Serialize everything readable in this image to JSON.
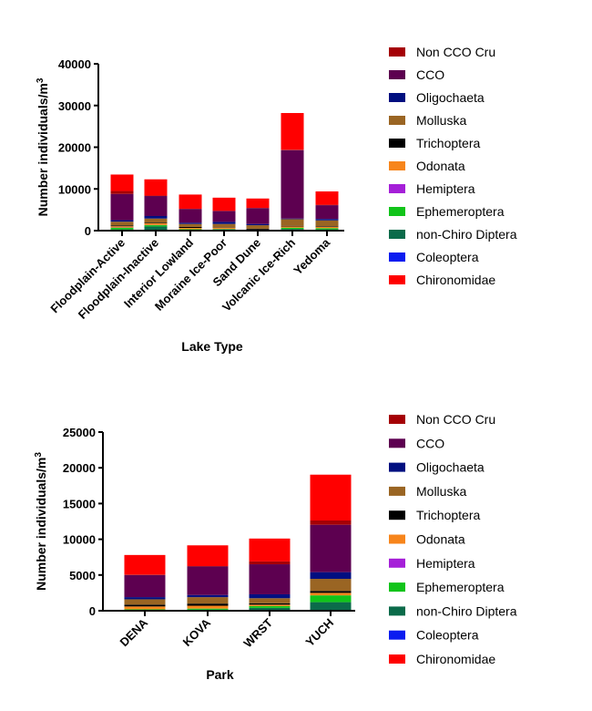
{
  "chart_data": [
    {
      "type": "bar",
      "stacked": true,
      "xlabel": "Lake Type",
      "ylabel": "Number individuals/m³",
      "ylim": [
        0,
        40000
      ],
      "yticks": [
        "0",
        "10000",
        "20000",
        "30000",
        "40000"
      ],
      "categories": [
        "Floodplain-Active",
        "Floodplain-Inactive",
        "Interior Lowland",
        "Moraine Ice-Poor",
        "Sand Dune",
        "Volcanic Ice-Rich",
        "Yedoma"
      ],
      "legend": "right",
      "series": [
        {
          "name": "non-Chiro Diptera",
          "color": "#0b6b4a",
          "values": [
            300,
            1000,
            200,
            300,
            150,
            400,
            300
          ]
        },
        {
          "name": "Ephemeroptera",
          "color": "#11c41a",
          "values": [
            400,
            300,
            150,
            100,
            0,
            300,
            300
          ]
        },
        {
          "name": "Hemiptera",
          "color": "#a51fd8",
          "values": [
            50,
            50,
            0,
            0,
            0,
            0,
            0
          ]
        },
        {
          "name": "Odonata",
          "color": "#f7851b",
          "values": [
            300,
            400,
            300,
            300,
            100,
            300,
            300
          ]
        },
        {
          "name": "Trichoptera",
          "color": "#000000",
          "values": [
            200,
            150,
            250,
            100,
            200,
            150,
            150
          ]
        },
        {
          "name": "Molluska",
          "color": "#9a6523",
          "values": [
            900,
            1000,
            700,
            800,
            850,
            1600,
            1400
          ]
        },
        {
          "name": "Coleoptera",
          "color": "#0a1cf0",
          "values": [
            0,
            0,
            0,
            0,
            0,
            0,
            0
          ]
        },
        {
          "name": "Oligochaeta",
          "color": "#000f80",
          "values": [
            350,
            600,
            300,
            500,
            300,
            150,
            350
          ]
        },
        {
          "name": "CCO",
          "color": "#5d0050",
          "values": [
            6300,
            4800,
            3300,
            2600,
            3800,
            16400,
            3300
          ]
        },
        {
          "name": "Non CCO Cru",
          "color": "#a50005",
          "values": [
            700,
            100,
            50,
            50,
            50,
            100,
            100
          ]
        },
        {
          "name": "Chironomidae",
          "color": "#ff0000",
          "values": [
            3950,
            3900,
            3400,
            3150,
            2250,
            8800,
            3200
          ]
        }
      ]
    },
    {
      "type": "bar",
      "stacked": true,
      "xlabel": "Park",
      "ylabel": "Number individuals/m³",
      "ylim": [
        0,
        25000
      ],
      "yticks": [
        "0",
        "5000",
        "10000",
        "15000",
        "20000",
        "25000"
      ],
      "categories": [
        "DENA",
        "KOVA",
        "WRST",
        "YUCH"
      ],
      "legend": "right",
      "series": [
        {
          "name": "non-Chiro Diptera",
          "color": "#0b6b4a",
          "values": [
            100,
            150,
            400,
            1200
          ]
        },
        {
          "name": "Ephemeroptera",
          "color": "#11c41a",
          "values": [
            100,
            150,
            250,
            950
          ]
        },
        {
          "name": "Hemiptera",
          "color": "#a51fd8",
          "values": [
            0,
            0,
            0,
            0
          ]
        },
        {
          "name": "Odonata",
          "color": "#f7851b",
          "values": [
            400,
            400,
            200,
            350
          ]
        },
        {
          "name": "Trichoptera",
          "color": "#000000",
          "values": [
            250,
            300,
            200,
            270
          ]
        },
        {
          "name": "Molluska",
          "color": "#9a6523",
          "values": [
            750,
            900,
            700,
            1690
          ]
        },
        {
          "name": "Coleoptera",
          "color": "#0a1cf0",
          "values": [
            0,
            0,
            0,
            0
          ]
        },
        {
          "name": "Oligochaeta",
          "color": "#000f80",
          "values": [
            300,
            300,
            550,
            940
          ]
        },
        {
          "name": "CCO",
          "color": "#5d0050",
          "values": [
            3100,
            4000,
            4200,
            6630
          ]
        },
        {
          "name": "Non CCO Cru",
          "color": "#a50005",
          "values": [
            50,
            50,
            400,
            600
          ]
        },
        {
          "name": "Chironomidae",
          "color": "#ff0000",
          "values": [
            2750,
            2900,
            3200,
            6410
          ]
        }
      ]
    }
  ],
  "legend_order": [
    "Non CCO Cru",
    "CCO",
    "Oligochaeta",
    "Molluska",
    "Trichoptera",
    "Odonata",
    "Hemiptera",
    "Ephemeroptera",
    "non-Chiro Diptera",
    "Coleoptera",
    "Chironomidae"
  ]
}
